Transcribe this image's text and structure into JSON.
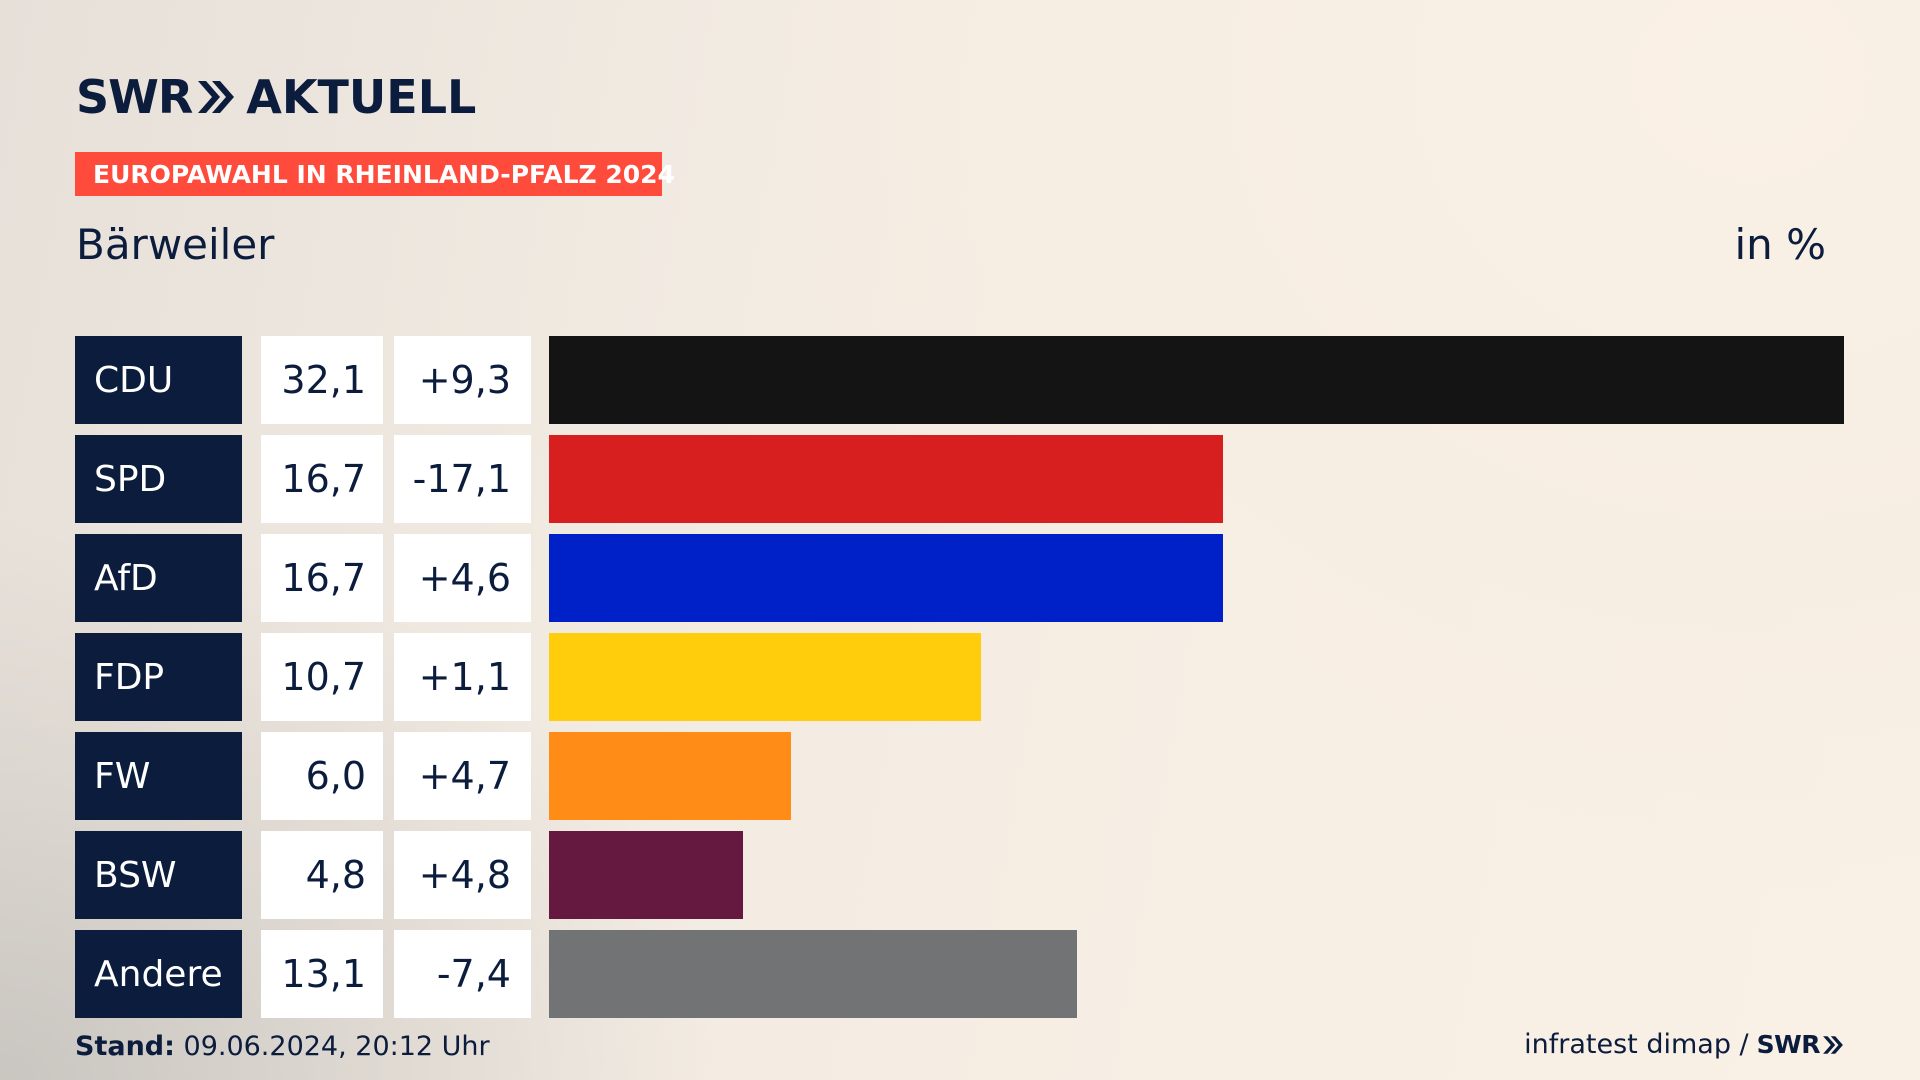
{
  "brand": {
    "swr": "SWR",
    "aktuell": "AKTUELL"
  },
  "tag": "EUROPAWAHL IN RHEINLAND-PFALZ 2024",
  "place": "Bärweiler",
  "unit": "in %",
  "footer": {
    "stand_label": "Stand:",
    "stand_value": "09.06.2024, 20:12 Uhr",
    "source": "infratest dimap /",
    "source_brand": "SWR"
  },
  "colors": {
    "navy": "#0b1c3d",
    "tag": "#ff4b3c"
  },
  "chart_data": {
    "type": "bar",
    "categories": [
      "CDU",
      "SPD",
      "AfD",
      "FDP",
      "FW",
      "BSW",
      "Andere"
    ],
    "values": [
      32.1,
      16.7,
      16.7,
      10.7,
      6.0,
      4.8,
      13.1
    ],
    "labels": [
      "32,1",
      "16,7",
      "16,7",
      "10,7",
      "6,0",
      "4,8",
      "13,1"
    ],
    "diffs": [
      "+9,3",
      "-17,1",
      "+4,6",
      "+1,1",
      "+4,7",
      "+4,8",
      "-7,4"
    ],
    "colors": [
      "#141414",
      "#d81f1f",
      "#0020c8",
      "#ffcd0b",
      "#ff8c17",
      "#651840",
      "#717375"
    ],
    "ylabel": "in %",
    "title": "Bärweiler"
  }
}
